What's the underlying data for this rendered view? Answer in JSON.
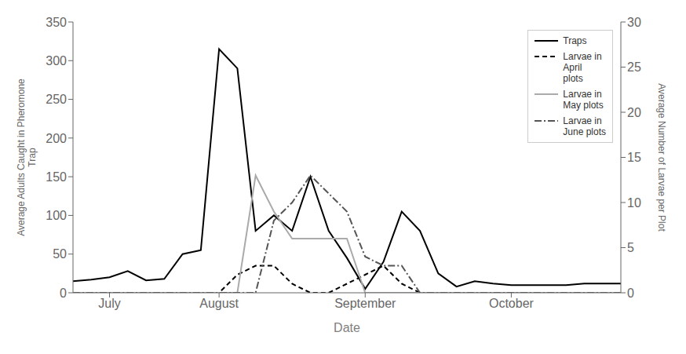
{
  "chart_data": {
    "type": "line",
    "xlabel": "Date",
    "ylabel": "Average Adults Caught in Pheromone\nTrap",
    "y2label": "Average Number of Larvae per Plot",
    "categories": [
      null,
      null,
      "July",
      null,
      null,
      null,
      null,
      null,
      "August",
      null,
      null,
      null,
      null,
      null,
      null,
      null,
      "September",
      null,
      null,
      null,
      null,
      null,
      null,
      null,
      "October",
      null,
      null,
      null,
      null,
      null,
      null
    ],
    "series": [
      {
        "name": "Traps",
        "color": "#000000",
        "line_style": "solid",
        "values": [
          15,
          17,
          20,
          28,
          16,
          18,
          50,
          55,
          315,
          290,
          80,
          100,
          80,
          150,
          80,
          45,
          5,
          40,
          105,
          80,
          25,
          8,
          15,
          12,
          10,
          10,
          10,
          10,
          12,
          12,
          12
        ]
      },
      {
        "name": "Larvae in\nApril\nplots",
        "color": "#000000",
        "line_style": "dashed",
        "axis": "y2",
        "values": [
          0,
          0,
          0,
          0,
          0,
          0,
          0,
          0,
          0,
          2,
          3,
          3,
          1,
          0,
          0,
          1,
          2,
          3,
          1,
          0,
          0,
          0,
          0,
          0,
          0,
          0,
          0,
          0,
          0,
          0,
          0
        ]
      },
      {
        "name": "Larvae in\nMay plots",
        "color": "#aaaaaa",
        "line_style": "solid",
        "axis": "y2",
        "values": [
          0,
          0,
          0,
          0,
          0,
          0,
          0,
          0,
          0,
          0,
          13,
          9,
          6,
          6,
          6,
          6,
          0,
          0,
          0,
          0,
          0,
          0,
          0,
          0,
          0,
          0,
          0,
          0,
          0,
          0,
          0
        ]
      },
      {
        "name": "Larvae in\nJune plots",
        "color": "#555555",
        "line_style": "dashdot",
        "axis": "y2",
        "values": [
          0,
          0,
          0,
          0,
          0,
          0,
          0,
          0,
          0,
          0,
          0,
          8,
          10,
          13,
          11,
          9,
          4,
          3,
          3,
          0,
          0,
          0,
          0,
          0,
          0,
          0,
          0,
          0,
          0,
          0,
          0
        ]
      }
    ],
    "ylim": [
      0,
      350
    ],
    "yticks": [
      0,
      50,
      100,
      150,
      200,
      250,
      300,
      350
    ],
    "y2lim": [
      0,
      30
    ],
    "y2ticks": [
      0,
      5,
      10,
      15,
      20,
      25,
      30
    ],
    "grid": false,
    "legend": "upper right"
  }
}
